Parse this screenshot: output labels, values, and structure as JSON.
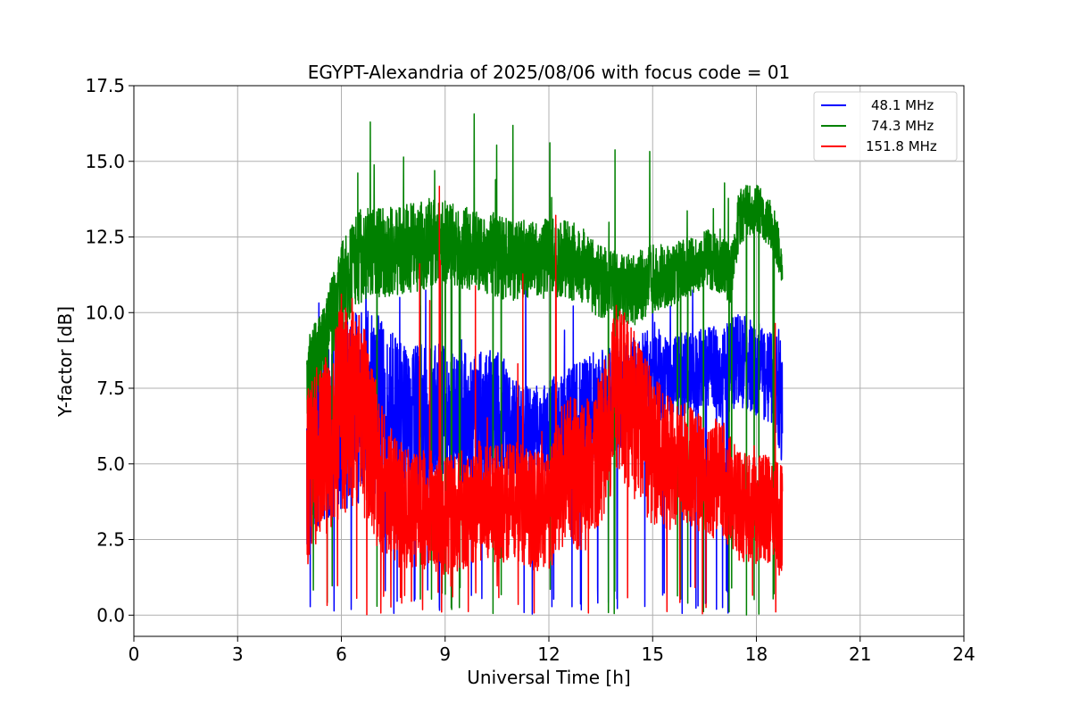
{
  "chart_data": {
    "type": "line",
    "title": "EGYPT-Alexandria of 2025/08/06 with focus code = 01",
    "xlabel": "Universal Time [h]",
    "ylabel": "Y-factor [dB]",
    "xlim": [
      0,
      24
    ],
    "ylim": [
      -0.7,
      17.5
    ],
    "xticks": [
      0,
      3,
      6,
      9,
      12,
      15,
      18,
      21,
      24
    ],
    "xtick_labels": [
      "0",
      "3",
      "6",
      "9",
      "12",
      "15",
      "18",
      "21",
      "24"
    ],
    "yticks": [
      0.0,
      2.5,
      5.0,
      7.5,
      10.0,
      12.5,
      15.0,
      17.5
    ],
    "ytick_labels": [
      "0.0",
      "2.5",
      "5.0",
      "7.5",
      "10.0",
      "12.5",
      "15.0",
      "17.5"
    ],
    "grid": true,
    "legend_position": "top-right",
    "series": [
      {
        "name": "48.1 MHz",
        "color": "#0000ff",
        "x": [
          5.0,
          5.5,
          6.0,
          6.5,
          7.0,
          7.5,
          8.0,
          8.5,
          9.0,
          9.5,
          10.0,
          10.5,
          11.0,
          11.5,
          12.0,
          12.5,
          13.0,
          13.5,
          14.0,
          14.5,
          15.0,
          15.5,
          16.0,
          16.5,
          17.0,
          17.5,
          18.0,
          18.5,
          18.75
        ],
        "center": [
          5.0,
          6.0,
          6.5,
          6.8,
          7.0,
          6.8,
          6.5,
          6.5,
          6.8,
          6.5,
          6.5,
          6.8,
          6.2,
          6.0,
          6.2,
          6.5,
          6.8,
          7.0,
          7.2,
          7.5,
          8.0,
          7.8,
          8.0,
          8.2,
          8.0,
          8.5,
          8.2,
          7.8,
          7.0
        ],
        "spread": [
          3.0,
          3.0,
          3.2,
          3.3,
          3.0,
          2.5,
          2.5,
          2.5,
          2.2,
          2.2,
          2.2,
          2.2,
          1.6,
          1.5,
          1.6,
          1.6,
          1.8,
          1.8,
          1.8,
          1.6,
          1.6,
          1.4,
          1.4,
          1.4,
          1.5,
          1.6,
          1.6,
          1.5,
          2.0
        ],
        "min": 0.0,
        "max": 11.5
      },
      {
        "name": "74.3 MHz",
        "color": "#008000",
        "x": [
          5.0,
          5.5,
          6.0,
          6.5,
          7.0,
          7.5,
          8.0,
          8.5,
          9.0,
          9.5,
          10.0,
          10.5,
          11.0,
          11.5,
          12.0,
          12.5,
          13.0,
          13.5,
          14.0,
          14.5,
          15.0,
          15.5,
          16.0,
          16.5,
          17.0,
          17.3,
          17.5,
          18.0,
          18.5,
          18.75
        ],
        "center": [
          7.8,
          9.0,
          10.8,
          11.8,
          12.0,
          12.0,
          12.1,
          12.3,
          12.3,
          12.2,
          12.1,
          11.9,
          11.7,
          11.8,
          11.8,
          11.8,
          11.5,
          11.0,
          10.8,
          10.8,
          11.1,
          11.2,
          11.5,
          11.8,
          11.5,
          11.3,
          13.2,
          13.5,
          12.8,
          11.5
        ],
        "spread": [
          1.3,
          1.3,
          1.5,
          1.6,
          1.5,
          1.5,
          1.5,
          1.5,
          1.4,
          1.4,
          1.4,
          1.4,
          1.4,
          1.4,
          1.3,
          1.3,
          1.3,
          1.2,
          1.2,
          1.2,
          1.2,
          1.0,
          1.0,
          1.0,
          1.0,
          1.0,
          1.0,
          0.8,
          0.8,
          0.8
        ],
        "min": 0.0,
        "max": 16.7
      },
      {
        "name": "151.8 MHz",
        "color": "#ff0000",
        "x": [
          5.0,
          5.5,
          6.0,
          6.5,
          7.0,
          7.5,
          8.0,
          8.5,
          9.0,
          9.5,
          10.0,
          10.5,
          11.0,
          11.5,
          12.0,
          12.5,
          13.0,
          13.5,
          14.0,
          14.5,
          15.0,
          15.5,
          16.0,
          16.5,
          17.0,
          17.5,
          18.0,
          18.5,
          18.75
        ],
        "center": [
          4.5,
          5.5,
          7.0,
          7.0,
          5.0,
          3.8,
          3.5,
          3.5,
          3.2,
          3.5,
          3.8,
          3.6,
          3.8,
          3.5,
          3.4,
          5.0,
          4.5,
          5.5,
          7.5,
          6.5,
          5.5,
          5.0,
          5.0,
          4.5,
          4.5,
          3.6,
          3.5,
          3.5,
          3.0
        ],
        "spread": [
          3.0,
          3.2,
          3.8,
          3.6,
          2.8,
          2.2,
          2.0,
          2.0,
          2.0,
          2.0,
          2.0,
          2.0,
          2.0,
          2.0,
          2.0,
          2.5,
          2.5,
          2.5,
          3.0,
          2.8,
          2.5,
          2.2,
          2.0,
          2.0,
          2.0,
          1.8,
          1.8,
          1.8,
          2.0
        ],
        "min": 0.0,
        "max": 14.2
      }
    ]
  }
}
